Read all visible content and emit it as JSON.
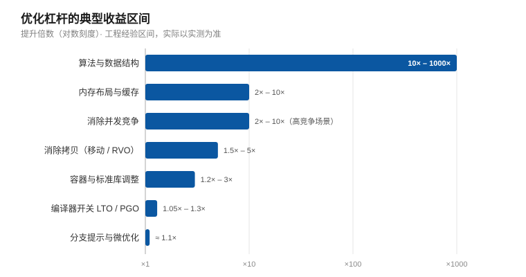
{
  "colors": {
    "bar": "#0b57a1",
    "grid": "#e4e4e4",
    "axis": "#a8a8a8",
    "category_text": "#333333",
    "value_text": "#555555",
    "inside_value_text": "#ffffff",
    "tick_text": "#8a8a8a"
  },
  "chart_data": {
    "type": "bar",
    "orientation": "horizontal",
    "title": "优化杠杆的典型收益区间",
    "subtitle": "提升倍数（对数刻度）· 工程经验区间，实际以实测为准",
    "x_scale": "log",
    "xlim": [
      1,
      1000
    ],
    "x_ticks": [
      1,
      10,
      100,
      1000
    ],
    "x_tick_labels": [
      "×1",
      "×10",
      "×100",
      "×1000"
    ],
    "grid": true,
    "categories": [
      "算法与数据结构",
      "内存布局与缓存",
      "消除并发竞争",
      "消除拷贝（移动 / RVO）",
      "容器与标准库调整",
      "编译器开关 LTO / PGO",
      "分支提示与微优化"
    ],
    "values": [
      1000,
      10,
      10,
      5,
      3,
      1.3,
      1.1
    ],
    "value_labels": [
      "10× – 1000×",
      "2× – 10×",
      "2× – 10×（高竞争场景）",
      "1.5× – 5×",
      "1.2× – 3×",
      "1.05× – 1.3×",
      "≈ 1.1×"
    ]
  }
}
